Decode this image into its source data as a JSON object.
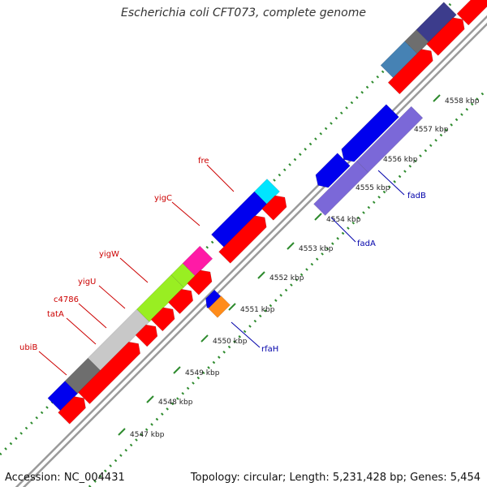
{
  "title": "Escherichia coli CFT073, complete genome",
  "footer": {
    "accession": "Accession: NC_004431",
    "topology": "Topology: circular; Length: 5,231,428 bp; Genes: 5,454"
  },
  "ruler": {
    "unit": "kbp",
    "labels": [
      "4547 kbp",
      "4548 kbp",
      "4549 kbp",
      "4550 kbp",
      "4551 kbp",
      "4552 kbp",
      "4553 kbp",
      "4554 kbp",
      "4555 kbp",
      "4556 kbp",
      "4557 kbp",
      "4558 kbp"
    ]
  },
  "gene_labels_left": [
    "fre",
    "yigC",
    "yigW",
    "yigU",
    "c4786",
    "tatA",
    "ubiB"
  ],
  "gene_labels_right": [
    "rfaH",
    "fadA",
    "fadB"
  ],
  "colors": {
    "label_left": "#cc0000",
    "label_right": "#0000aa",
    "cds_red": "#ff0000",
    "blue": "#0000ee",
    "purple": "#7b68d8",
    "cyan": "#00e5ff",
    "pink": "#ff1aa6",
    "lime": "#99ee22",
    "lightgray": "#c8c8c8",
    "darkgray": "#6e6e6e",
    "steelblue": "#4682b4",
    "darknavy": "#3c3c8c",
    "orange": "#ff8c1a",
    "tick_green": "#2e8b2e"
  }
}
